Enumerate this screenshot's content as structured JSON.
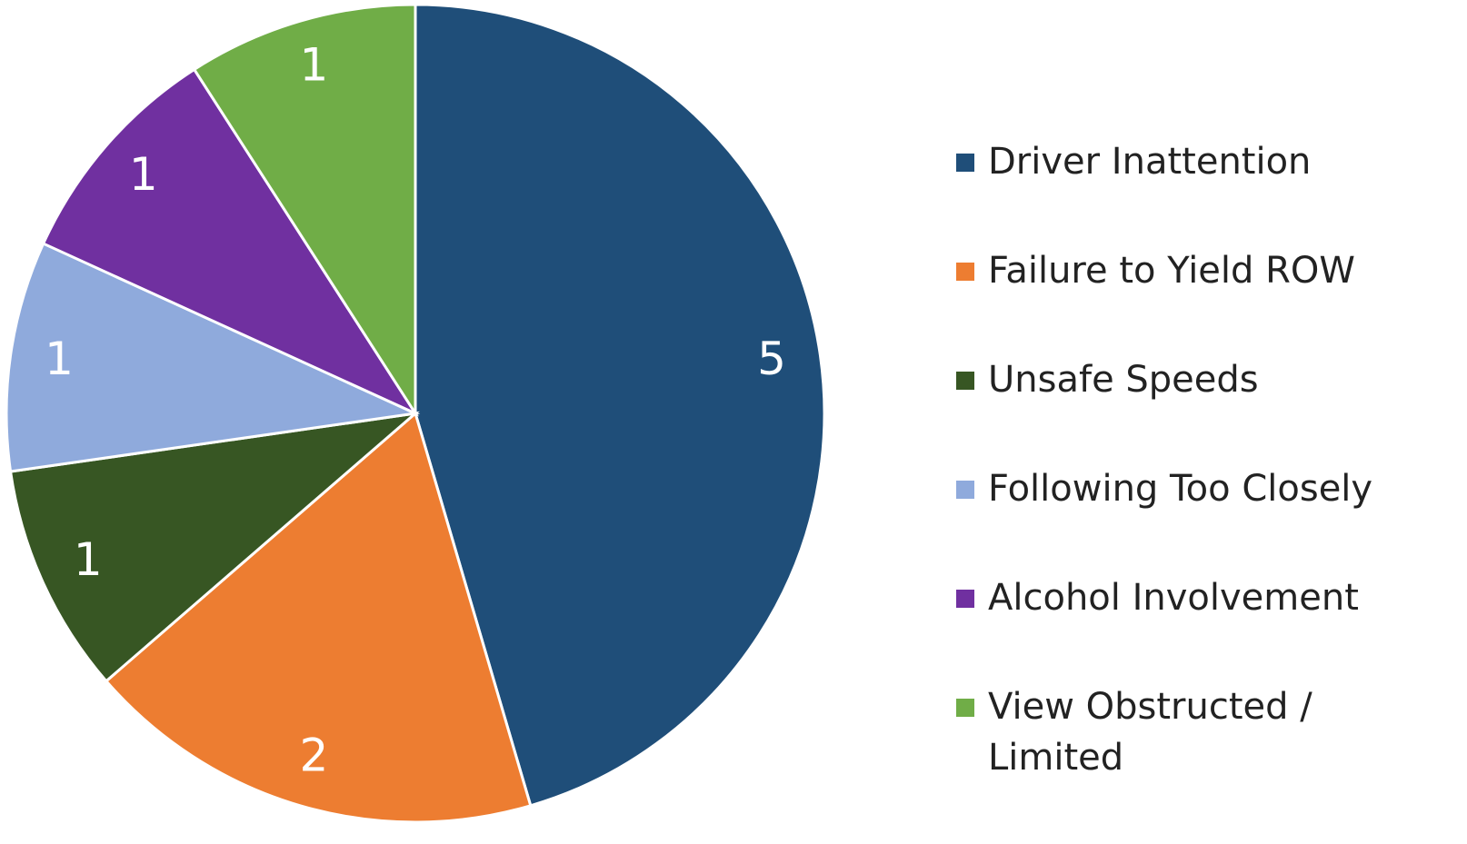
{
  "chart_data": {
    "type": "pie",
    "categories": [
      "Driver Inattention",
      "Failure to Yield ROW",
      "Unsafe Speeds",
      "Following Too Closely",
      "Alcohol Involvement",
      "View Obstructed / Limited"
    ],
    "values": [
      5,
      2,
      1,
      1,
      1,
      1
    ],
    "colors": [
      "#1f4e79",
      "#ed7d31",
      "#375623",
      "#8faadc",
      "#7030a0",
      "#70ad47"
    ],
    "legend": "right"
  }
}
